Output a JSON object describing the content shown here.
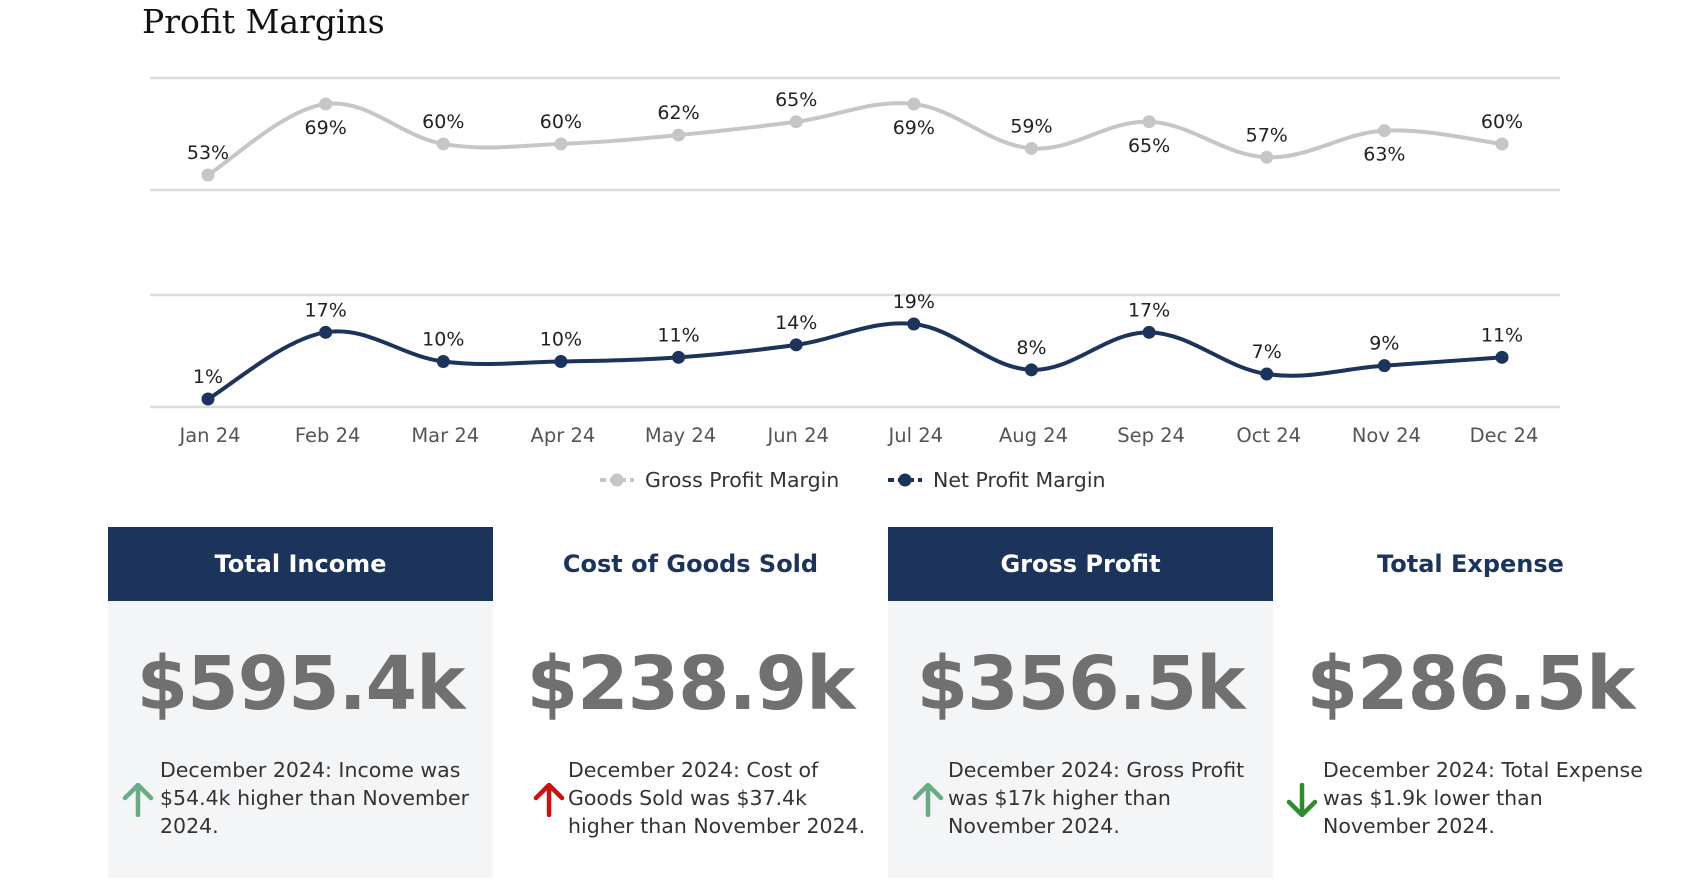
{
  "title": "Profit Margins",
  "chart_data": {
    "type": "line",
    "categories": [
      "Jan 24",
      "Feb 24",
      "Mar 24",
      "Apr 24",
      "May 24",
      "Jun 24",
      "Jul 24",
      "Aug 24",
      "Sep 24",
      "Oct 24",
      "Nov 24",
      "Dec 24"
    ],
    "series": [
      {
        "name": "Gross Profit Margin",
        "values": [
          53,
          69,
          60,
          60,
          62,
          65,
          69,
          59,
          65,
          57,
          63,
          60
        ],
        "labels": [
          "53%",
          "69%",
          "60%",
          "60%",
          "62%",
          "65%",
          "69%",
          "59%",
          "65%",
          "57%",
          "63%",
          "60%"
        ],
        "color": "#c6c6c6"
      },
      {
        "name": "Net Profit Margin",
        "values": [
          1,
          17,
          10,
          10,
          11,
          14,
          19,
          8,
          17,
          7,
          9,
          11
        ],
        "labels": [
          "1%",
          "17%",
          "10%",
          "10%",
          "11%",
          "14%",
          "19%",
          "8%",
          "17%",
          "7%",
          "9%",
          "11%"
        ],
        "color": "#1c345c"
      }
    ],
    "legend": "bottom",
    "grid": true
  },
  "cards": [
    {
      "title": "Total Income",
      "value": "$595.4k",
      "note": "December 2024: Income was $54.4k higher than November 2024.",
      "arrow": "up",
      "arrow_color": "#6aaa84",
      "style": "dark"
    },
    {
      "title": "Cost of Goods Sold",
      "value": "$238.9k",
      "note": "December 2024: Cost of Goods Sold was $37.4k higher than November 2024.",
      "arrow": "up",
      "arrow_color": "#cc1010",
      "style": "light"
    },
    {
      "title": "Gross Profit",
      "value": "$356.5k",
      "note": "December 2024: Gross Profit was $17k higher than November 2024.",
      "arrow": "up",
      "arrow_color": "#6aaa84",
      "style": "dark"
    },
    {
      "title": "Total Expense",
      "value": "$286.5k",
      "note": "December 2024: Total Expense was $1.9k lower than November 2024.",
      "arrow": "down",
      "arrow_color": "#2e8b2e",
      "style": "light"
    }
  ]
}
